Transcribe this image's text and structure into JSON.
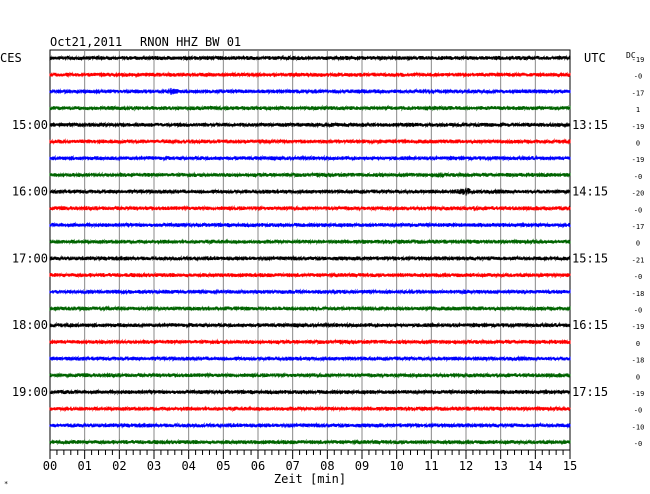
{
  "header": {
    "date": "Oct21,2011",
    "station": "RNON HHZ BW 01",
    "left_tz": "CES",
    "right_tz": "UTC",
    "dc_label": "DC"
  },
  "chart_data": {
    "type": "line",
    "title": "Oct21,2011   RNON HHZ BW 01",
    "xlabel": "Zeit [min]",
    "x_ticks": [
      "00",
      "01",
      "02",
      "03",
      "04",
      "05",
      "06",
      "07",
      "08",
      "09",
      "10",
      "11",
      "12",
      "13",
      "14",
      "15"
    ],
    "xlim": [
      0,
      15
    ],
    "trace_count": 24,
    "trace_interval_min": 15,
    "trace_colors": [
      "#000000",
      "#ff0000",
      "#0000ff",
      "#006400"
    ],
    "left_hour_labels": [
      {
        "row": 4,
        "text": "15:00"
      },
      {
        "row": 8,
        "text": "16:00"
      },
      {
        "row": 12,
        "text": "17:00"
      },
      {
        "row": 16,
        "text": "18:00"
      },
      {
        "row": 20,
        "text": "19:00"
      }
    ],
    "right_hour_labels": [
      {
        "row": 4,
        "text": "13:15"
      },
      {
        "row": 8,
        "text": "14:15"
      },
      {
        "row": 12,
        "text": "15:15"
      },
      {
        "row": 16,
        "text": "16:15"
      },
      {
        "row": 20,
        "text": "17:15"
      }
    ],
    "dc_offsets": [
      "-19",
      "-0",
      "-17",
      "1",
      "-19",
      "0",
      "-19",
      "-0",
      "-20",
      "-0",
      "-17",
      "0",
      "-21",
      "-0",
      "-18",
      "-0",
      "-19",
      "0",
      "-18",
      "0",
      "-19",
      "-0",
      "-10",
      "-0"
    ],
    "events": [
      {
        "row": 2,
        "minute": 3.5,
        "amplitude": 3.2,
        "width_min": 0.3
      },
      {
        "row": 7,
        "minute": 11.2,
        "amplitude": 2.6,
        "width_min": 0.3
      },
      {
        "row": 8,
        "minute": 3.9,
        "amplitude": 1.8,
        "width_min": 0.1
      },
      {
        "row": 8,
        "minute": 12.0,
        "amplitude": 3.8,
        "width_min": 0.4
      },
      {
        "row": 9,
        "minute": 12.3,
        "amplitude": 2.4,
        "width_min": 0.3
      },
      {
        "row": 15,
        "minute": 13.0,
        "amplitude": 1.6,
        "width_min": 0.3
      }
    ],
    "grid": true
  }
}
